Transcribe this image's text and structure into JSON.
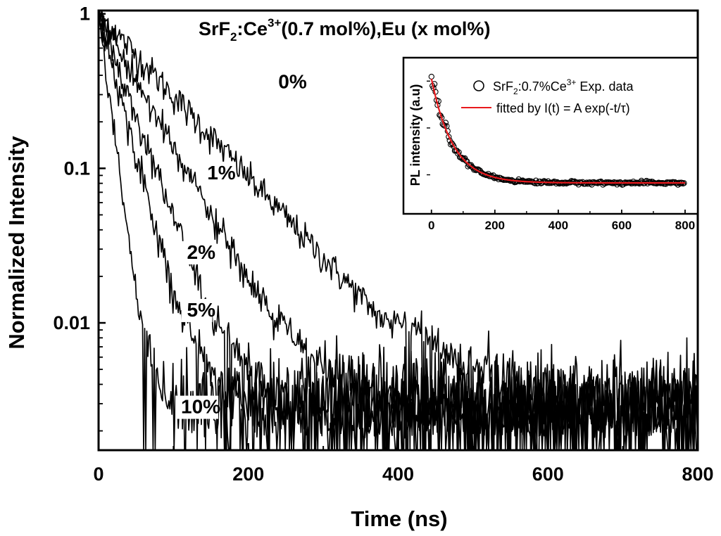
{
  "chart_data": [
    {
      "type": "line",
      "title": {
        "p1": "SrF",
        "sub": "2",
        "p2": ":Ce",
        "sup": "3+",
        "p3": "(0.7 mol%),Eu (x mol%)"
      },
      "xlabel": "Time (ns)",
      "ylabel": "Normalized Intensity",
      "xlim": [
        0,
        800
      ],
      "ylim": [
        0.0015,
        1.05
      ],
      "yscale": "log",
      "xticks": [
        "0",
        "200",
        "400",
        "600",
        "800"
      ],
      "yticks": [
        "1",
        "0.1",
        "0.01"
      ],
      "noise_floor": 0.003,
      "series": [
        {
          "name": "0%",
          "tau": 82,
          "label_x": 240,
          "label_y": 0.33
        },
        {
          "name": "1%",
          "tau": 50,
          "label_x": 145,
          "label_y": 0.085
        },
        {
          "name": "2%",
          "tau": 33,
          "label_x": 118,
          "label_y": 0.026
        },
        {
          "name": "5%",
          "tau": 24,
          "label_x": 118,
          "label_y": 0.011
        },
        {
          "name": "10%",
          "tau": 12,
          "label_x": 110,
          "label_y": 0.0026
        }
      ]
    },
    {
      "type": "scatter",
      "title": "",
      "ylabel": "PL intensity (a.u)",
      "xlim": [
        -15,
        840
      ],
      "xticks": [
        "0",
        "200",
        "400",
        "600",
        "800"
      ],
      "series": [
        {
          "name": "SrF2:0.7%Ce3+ Exp. data",
          "label": {
            "p1": "SrF",
            "sub": "2",
            "p2": ":0.7%Ce",
            "sup": "3+",
            "p3": " Exp. data"
          },
          "marker": "open-circle",
          "color": "#000000"
        },
        {
          "name": "fitted by I(t) = A exp(-t/τ)",
          "label": "fitted by I(t) = A exp(-t/τ)",
          "marker": "line",
          "color": "#e8191d",
          "tau": 68
        }
      ]
    }
  ]
}
